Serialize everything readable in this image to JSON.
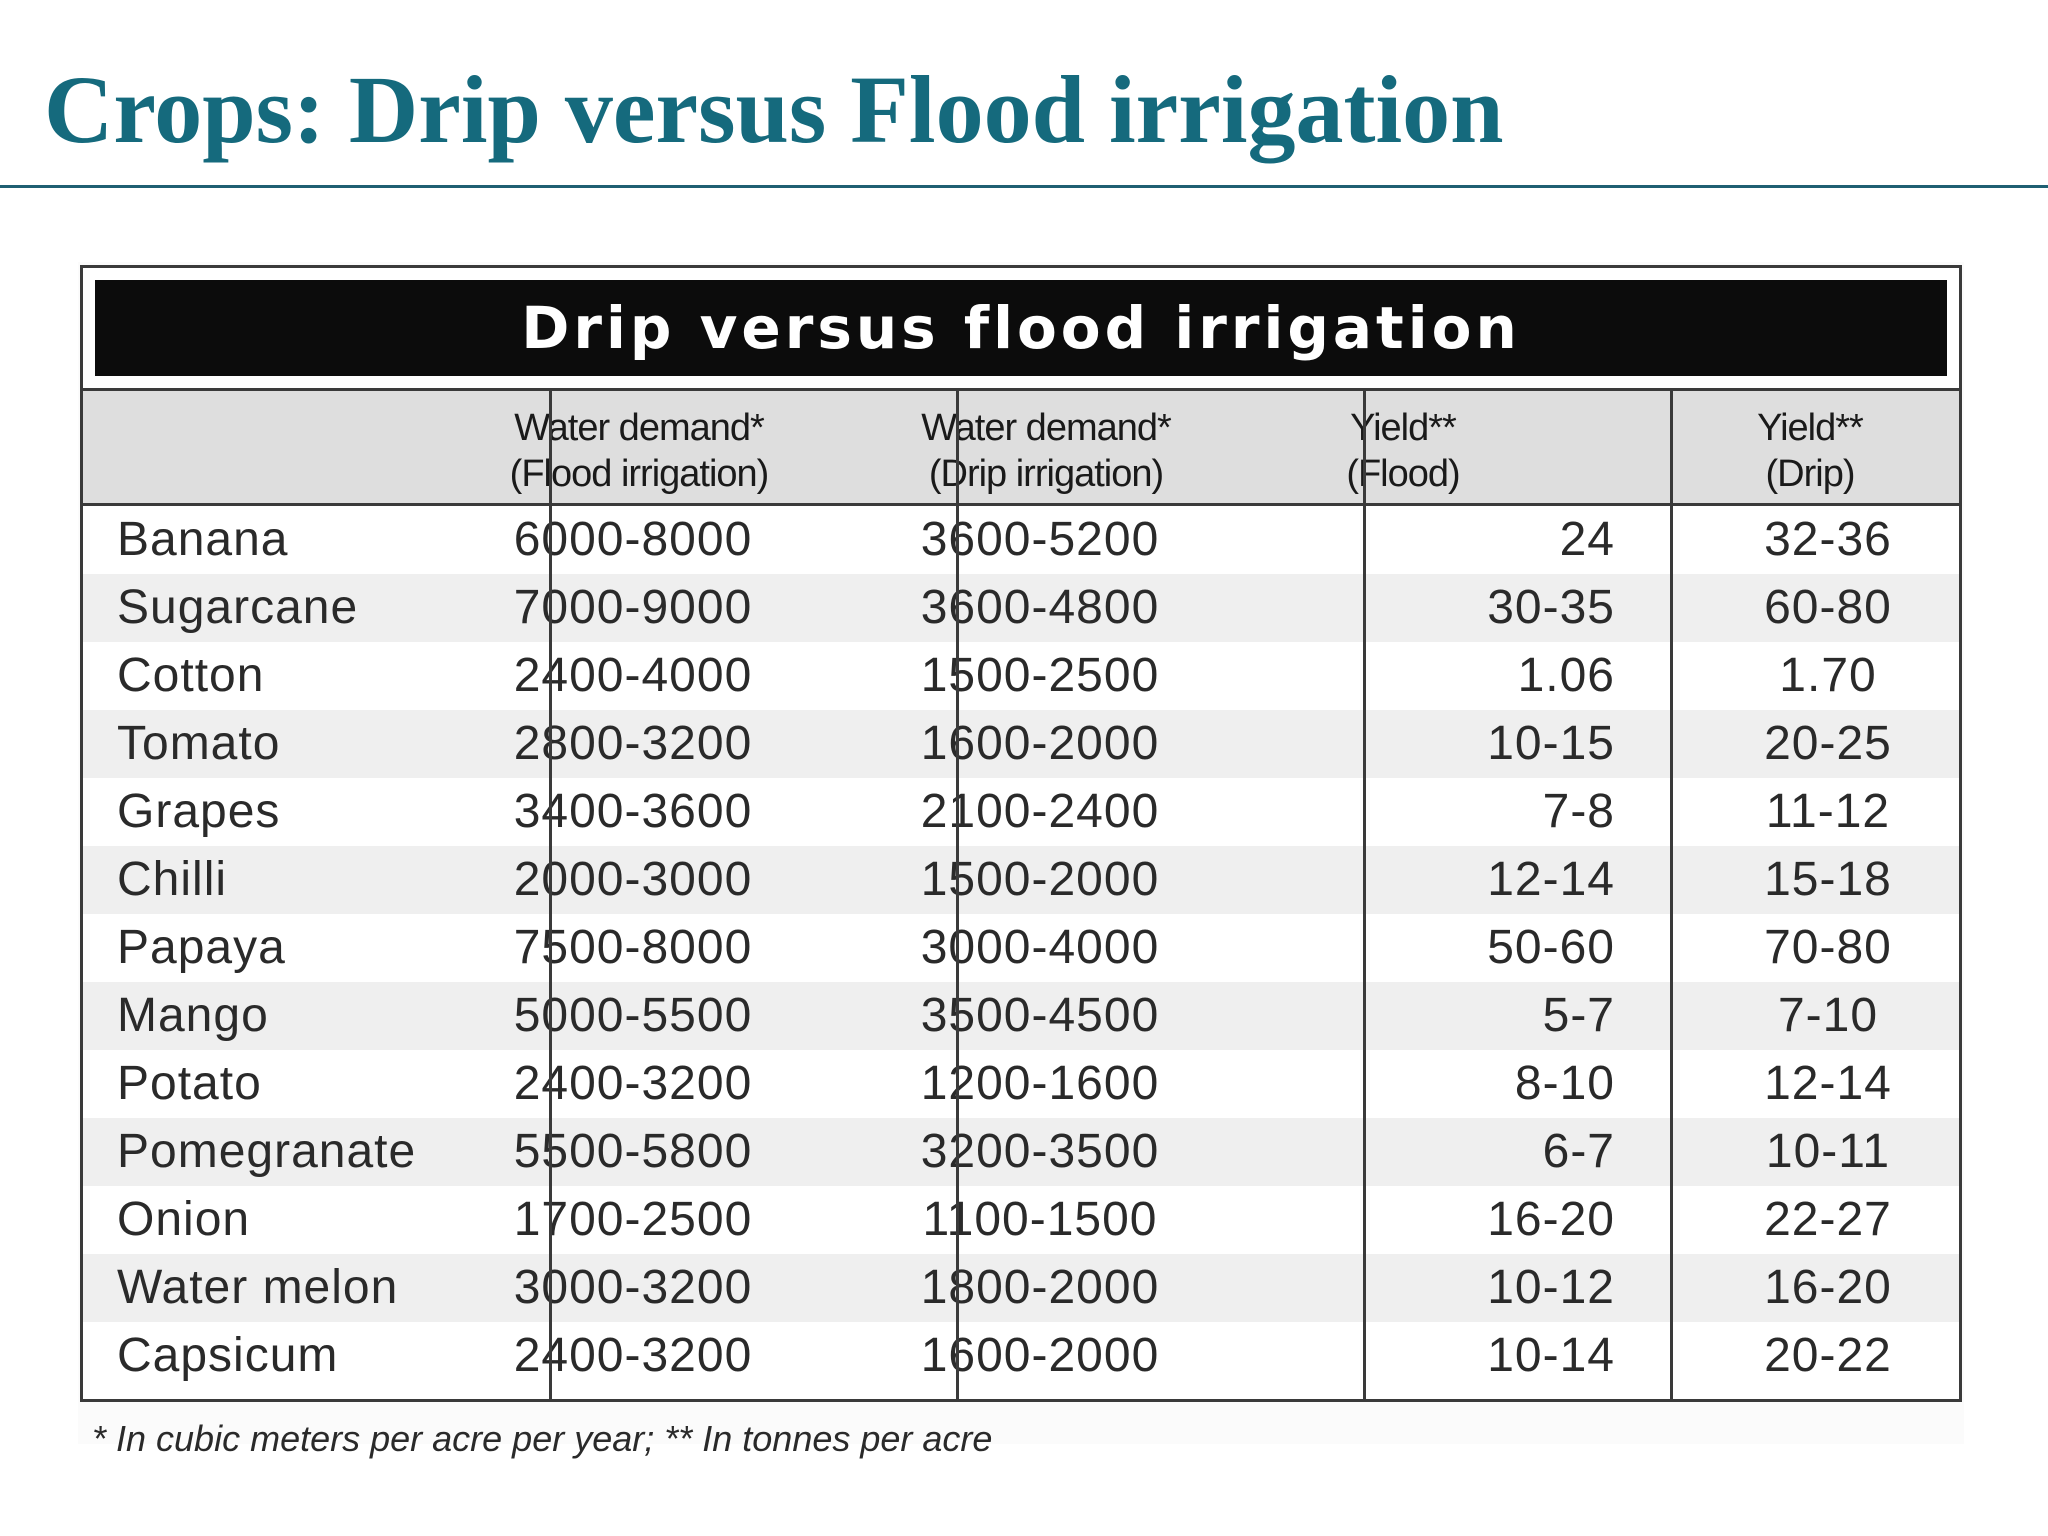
{
  "slide_title": "Crops: Drip versus Flood irrigation",
  "table": {
    "title": "Drip versus flood irrigation",
    "columns": [
      {
        "line1": "",
        "line2": ""
      },
      {
        "line1": "Water demand*",
        "line2": "(Flood irrigation)"
      },
      {
        "line1": "Water demand*",
        "line2": "(Drip irrigation)"
      },
      {
        "line1": "Yield**",
        "line2": "(Flood)"
      },
      {
        "line1": "Yield**",
        "line2": "(Drip)"
      }
    ],
    "rows": [
      {
        "crop": "Banana",
        "water_flood": "6000-8000",
        "water_drip": "3600-5200",
        "yield_flood": "24",
        "yield_drip": "32-36"
      },
      {
        "crop": "Sugarcane",
        "water_flood": "7000-9000",
        "water_drip": "3600-4800",
        "yield_flood": "30-35",
        "yield_drip": "60-80"
      },
      {
        "crop": "Cotton",
        "water_flood": "2400-4000",
        "water_drip": "1500-2500",
        "yield_flood": "1.06",
        "yield_drip": "1.70"
      },
      {
        "crop": "Tomato",
        "water_flood": "2800-3200",
        "water_drip": "1600-2000",
        "yield_flood": "10-15",
        "yield_drip": "20-25"
      },
      {
        "crop": "Grapes",
        "water_flood": "3400-3600",
        "water_drip": "2100-2400",
        "yield_flood": "7-8",
        "yield_drip": "11-12"
      },
      {
        "crop": "Chilli",
        "water_flood": "2000-3000",
        "water_drip": "1500-2000",
        "yield_flood": "12-14",
        "yield_drip": "15-18"
      },
      {
        "crop": "Papaya",
        "water_flood": "7500-8000",
        "water_drip": "3000-4000",
        "yield_flood": "50-60",
        "yield_drip": "70-80"
      },
      {
        "crop": "Mango",
        "water_flood": "5000-5500",
        "water_drip": "3500-4500",
        "yield_flood": "5-7",
        "yield_drip": "7-10"
      },
      {
        "crop": "Potato",
        "water_flood": "2400-3200",
        "water_drip": "1200-1600",
        "yield_flood": "8-10",
        "yield_drip": "12-14"
      },
      {
        "crop": "Pomegranate",
        "water_flood": "5500-5800",
        "water_drip": "3200-3500",
        "yield_flood": "6-7",
        "yield_drip": "10-11"
      },
      {
        "crop": "Onion",
        "water_flood": "1700-2500",
        "water_drip": "1100-1500",
        "yield_flood": "16-20",
        "yield_drip": "22-27"
      },
      {
        "crop": "Water melon",
        "water_flood": "3000-3200",
        "water_drip": "1800-2000",
        "yield_flood": "10-12",
        "yield_drip": "16-20"
      },
      {
        "crop": "Capsicum",
        "water_flood": "2400-3200",
        "water_drip": "1600-2000",
        "yield_flood": "10-14",
        "yield_drip": "20-22"
      }
    ]
  },
  "footnote": "* In cubic meters per acre per year; ** In tonnes per acre",
  "colors": {
    "title": "#156a7d",
    "table_title_bg": "#0c0c0c",
    "header_bg": "#dedede",
    "alt_row_bg": "#efefef"
  }
}
